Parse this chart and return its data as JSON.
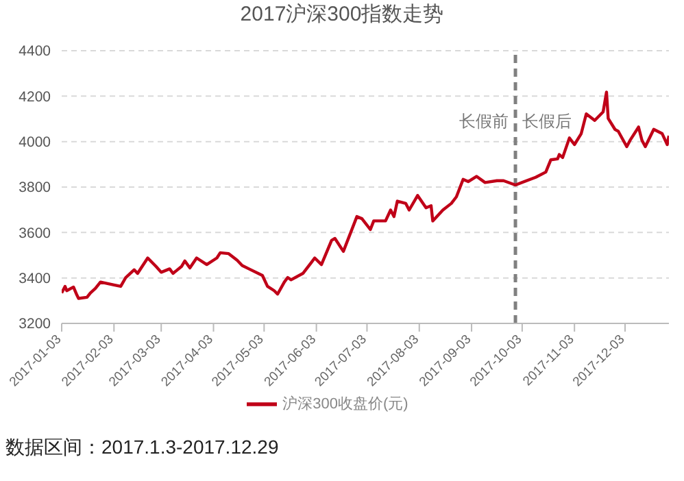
{
  "chart_data": {
    "type": "line",
    "title": "2017沪深300指数走势",
    "x": [
      "2017-01-03",
      "2017-01-05",
      "2017-01-06",
      "2017-01-10",
      "2017-01-12",
      "2017-01-13",
      "2017-01-18",
      "2017-01-20",
      "2017-01-23",
      "2017-01-26",
      "2017-02-03",
      "2017-02-07",
      "2017-02-10",
      "2017-02-15",
      "2017-02-17",
      "2017-02-23",
      "2017-02-28",
      "2017-03-03",
      "2017-03-08",
      "2017-03-10",
      "2017-03-15",
      "2017-03-17",
      "2017-03-20",
      "2017-03-24",
      "2017-03-30",
      "2017-04-05",
      "2017-04-07",
      "2017-04-12",
      "2017-04-17",
      "2017-04-20",
      "2017-04-24",
      "2017-05-02",
      "2017-05-05",
      "2017-05-09",
      "2017-05-11",
      "2017-05-15",
      "2017-05-17",
      "2017-05-19",
      "2017-05-26",
      "2017-05-31",
      "2017-06-02",
      "2017-06-06",
      "2017-06-12",
      "2017-06-14",
      "2017-06-19",
      "2017-06-27",
      "2017-06-30",
      "2017-07-05",
      "2017-07-07",
      "2017-07-14",
      "2017-07-17",
      "2017-07-19",
      "2017-07-21",
      "2017-07-26",
      "2017-07-28",
      "2017-08-02",
      "2017-08-07",
      "2017-08-10",
      "2017-08-11",
      "2017-08-17",
      "2017-08-22",
      "2017-08-25",
      "2017-08-29",
      "2017-09-01",
      "2017-09-06",
      "2017-09-11",
      "2017-09-18",
      "2017-09-22",
      "2017-09-29",
      "2017-10-11",
      "2017-10-17",
      "2017-10-20",
      "2017-10-24",
      "2017-10-25",
      "2017-10-27",
      "2017-10-31",
      "2017-11-03",
      "2017-11-07",
      "2017-11-10",
      "2017-11-15",
      "2017-11-20",
      "2017-11-22",
      "2017-11-23",
      "2017-11-27",
      "2017-11-29",
      "2017-12-04",
      "2017-12-06",
      "2017-12-11",
      "2017-12-13",
      "2017-12-15",
      "2017-12-20",
      "2017-12-25",
      "2017-12-28",
      "2017-12-29"
    ],
    "series": [
      {
        "name": "沪深300收盘价(元)",
        "color": "#c00018",
        "values": [
          3334,
          3363,
          3344,
          3360,
          3325,
          3310,
          3315,
          3334,
          3354,
          3382,
          3369,
          3363,
          3402,
          3436,
          3420,
          3488,
          3450,
          3425,
          3440,
          3420,
          3450,
          3475,
          3444,
          3488,
          3459,
          3488,
          3511,
          3507,
          3478,
          3455,
          3440,
          3411,
          3363,
          3344,
          3329,
          3382,
          3402,
          3392,
          3420,
          3468,
          3488,
          3459,
          3565,
          3574,
          3517,
          3670,
          3661,
          3613,
          3651,
          3651,
          3699,
          3670,
          3738,
          3728,
          3699,
          3763,
          3709,
          3718,
          3651,
          3699,
          3728,
          3757,
          3834,
          3824,
          3847,
          3820,
          3828,
          3828,
          3809,
          3843,
          3866,
          3920,
          3924,
          3943,
          3930,
          4016,
          3987,
          4035,
          4122,
          4093,
          4131,
          4218,
          4102,
          4054,
          4045,
          3978,
          4006,
          4064,
          4006,
          3978,
          4054,
          4035,
          3987,
          4026
        ]
      }
    ],
    "xlim": [
      "2017-01-03",
      "2017-12-29"
    ],
    "xticks": [
      "2017-01-03",
      "2017-02-03",
      "2017-03-03",
      "2017-04-03",
      "2017-05-03",
      "2017-06-03",
      "2017-07-03",
      "2017-08-03",
      "2017-09-03",
      "2017-10-03",
      "2017-11-03",
      "2017-12-03"
    ],
    "ylim": [
      3200,
      4400
    ],
    "yticks": [
      3200,
      3400,
      3600,
      3800,
      4000,
      4200,
      4400
    ],
    "grid": "y",
    "legend": "bottom",
    "marker": "none",
    "line_style": "solid",
    "ref_lines": [
      {
        "axis": "x",
        "value": "2017-09-29",
        "color": "#808080",
        "line_style": "dashed"
      }
    ],
    "annotations": [
      {
        "text": "长假前",
        "x": "2017-09-29"
      },
      {
        "text": "长假后",
        "x": "2017-09-29"
      },
      "数据区间：2017.1.3-2017.12.29"
    ]
  }
}
